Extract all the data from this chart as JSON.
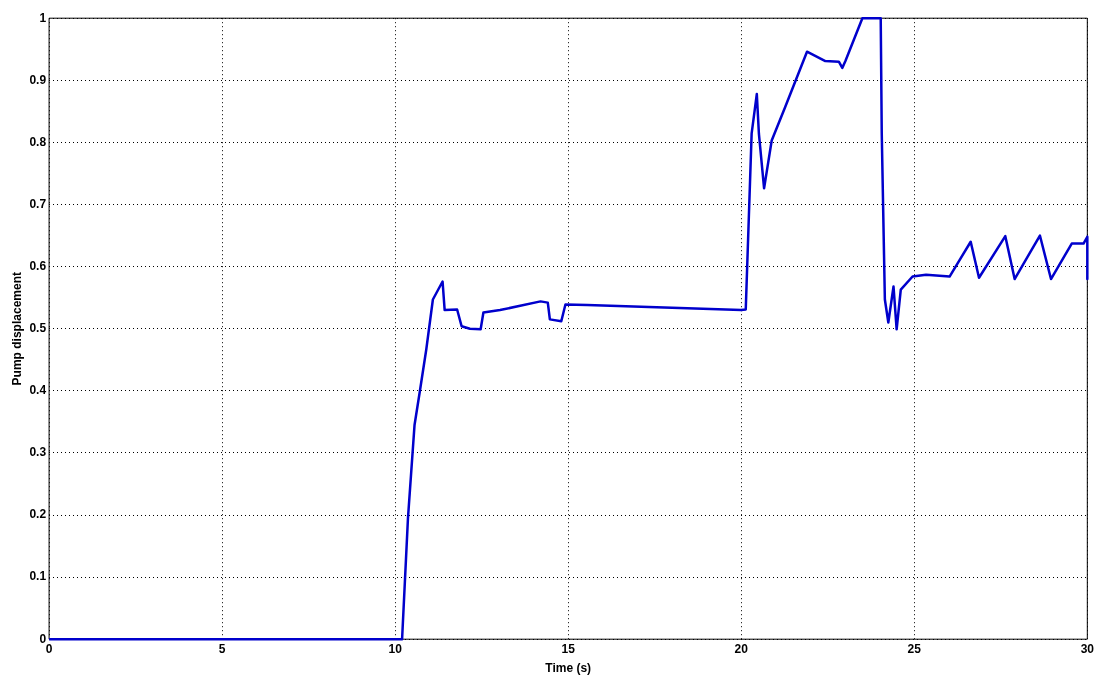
{
  "chart_data": {
    "type": "line",
    "xlabel": "Time (s)",
    "ylabel": "Pump displacement",
    "xlim": [
      0,
      30
    ],
    "xticks": [
      0,
      5,
      10,
      15,
      20,
      25,
      30
    ],
    "ylim": [
      0,
      1
    ],
    "yticks": [
      0,
      0.1,
      0.2,
      0.3,
      0.4,
      0.5,
      0.6,
      0.7,
      0.8,
      0.9,
      1
    ],
    "grid": true,
    "marker": "none",
    "line_style": "solid",
    "series": [
      {
        "color": "#0000cc",
        "x": [
          0,
          10.2,
          10.37,
          10.56,
          10.71,
          10.9,
          11.09,
          11.37,
          11.43,
          11.79,
          11.92,
          12.16,
          12.47,
          12.55,
          13.03,
          14.2,
          14.41,
          14.47,
          14.8,
          14.92,
          15.55,
          20.0,
          20.13,
          20.3,
          20.45,
          20.51,
          20.66,
          20.88,
          21.27,
          21.9,
          22.43,
          22.82,
          22.92,
          23.01,
          23.5,
          24.03,
          24.06,
          24.15,
          24.25,
          24.4,
          24.49,
          24.61,
          24.95,
          25.34,
          26.02,
          26.63,
          26.87,
          27.63,
          27.9,
          28.63,
          28.95,
          29.55,
          29.89,
          30,
          30
        ],
        "values": [
          0,
          0,
          0.195,
          0.345,
          0.398,
          0.467,
          0.547,
          0.576,
          0.53,
          0.531,
          0.504,
          0.5,
          0.499,
          0.526,
          0.53,
          0.544,
          0.542,
          0.515,
          0.512,
          0.539,
          0.538,
          0.53,
          0.531,
          0.814,
          0.878,
          0.814,
          0.726,
          0.803,
          0.857,
          0.946,
          0.931,
          0.93,
          0.92,
          0.931,
          1.0,
          1.0,
          0.814,
          0.547,
          0.51,
          0.568,
          0.499,
          0.563,
          0.584,
          0.587,
          0.584,
          0.64,
          0.582,
          0.649,
          0.58,
          0.65,
          0.58,
          0.637,
          0.637,
          0.648,
          0.58
        ]
      }
    ]
  }
}
